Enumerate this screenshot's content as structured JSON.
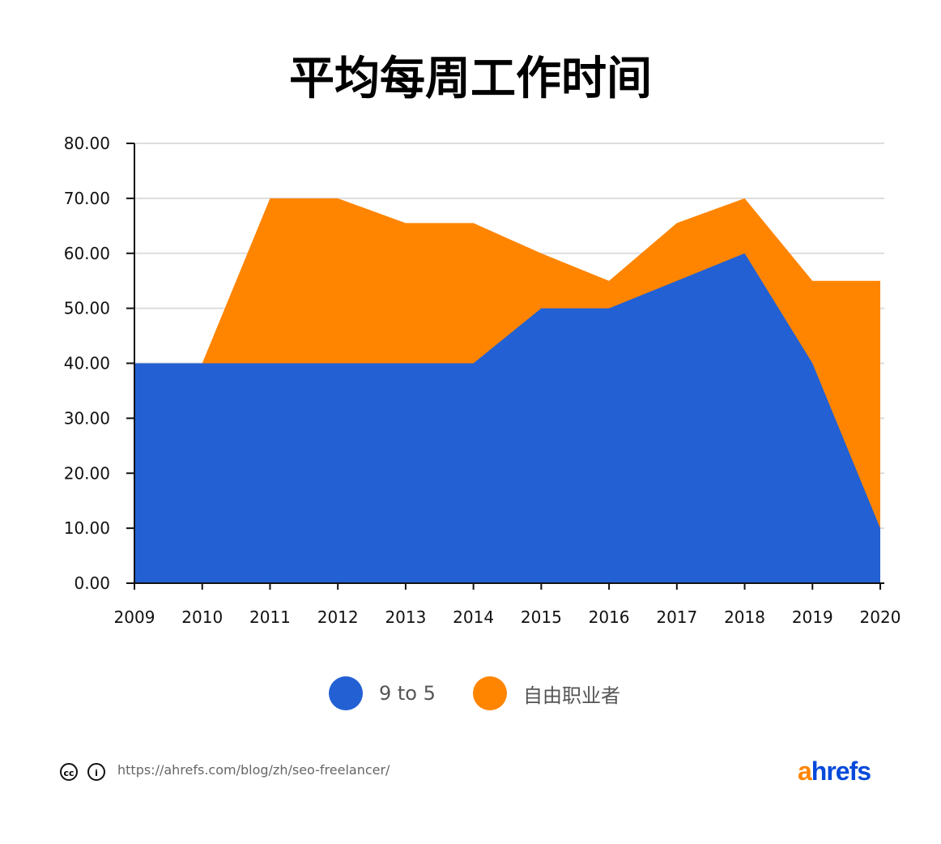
{
  "chart_data": {
    "type": "area",
    "title": "平均每周工作时间",
    "categories": [
      "2009",
      "2010",
      "2011",
      "2012",
      "2013",
      "2014",
      "2015",
      "2016",
      "2017",
      "2018",
      "2019",
      "2020"
    ],
    "series": [
      {
        "name": "自由职业者",
        "color": "#FF8500",
        "values": [
          40,
          40,
          70,
          70,
          65.5,
          65.5,
          60,
          55,
          65.5,
          70,
          55,
          55
        ]
      },
      {
        "name": "9 to 5",
        "color": "#2260D4",
        "values": [
          40,
          40,
          40,
          40,
          40,
          40,
          50,
          50,
          55,
          60,
          40,
          10
        ]
      }
    ],
    "ylim": [
      0,
      80
    ],
    "yticks": [
      "0.00",
      "10.00",
      "20.00",
      "30.00",
      "40.00",
      "50.00",
      "60.00",
      "70.00",
      "80.00"
    ],
    "grid": true,
    "legend_position": "bottom"
  },
  "legend": [
    "9 to 5",
    "自由职业者"
  ],
  "footer": {
    "url": "https://ahrefs.com/blog/zh/seo-freelancer/",
    "logo": "ahrefs"
  }
}
